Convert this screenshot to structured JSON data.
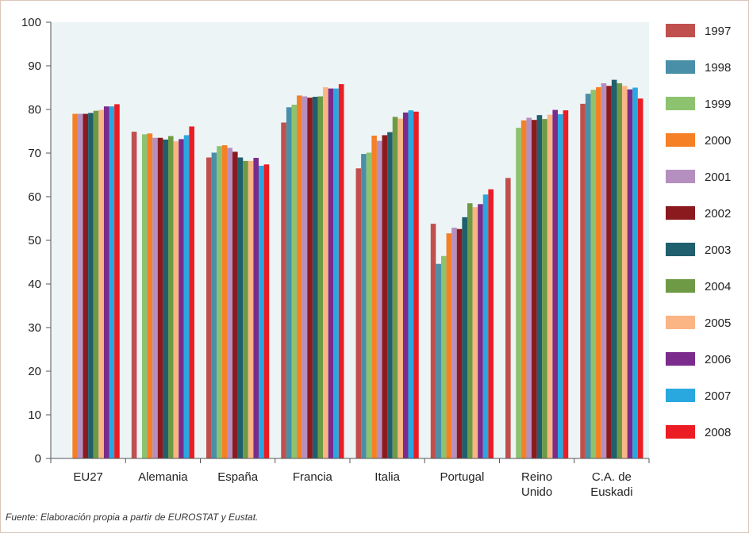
{
  "chart_data": {
    "type": "bar",
    "categories": [
      [
        "EU27"
      ],
      [
        "Alemania"
      ],
      [
        "España"
      ],
      [
        "Francia"
      ],
      [
        "Italia"
      ],
      [
        "Portugal"
      ],
      [
        "Reino",
        "Unido"
      ],
      [
        "C.A. de",
        "Euskadi"
      ]
    ],
    "ylim": [
      0,
      100
    ],
    "yticks": [
      "0",
      "10",
      "20",
      "30",
      "40",
      "50",
      "60",
      "70",
      "80",
      "90",
      "100"
    ],
    "grid": false,
    "legend_position": "right",
    "plot_background": "#edf4f6",
    "series": [
      {
        "name": "1997",
        "color": "#c0504d",
        "values": [
          null,
          74.9,
          69.0,
          77.0,
          66.5,
          53.8,
          64.3,
          81.3
        ]
      },
      {
        "name": "1998",
        "color": "#4a8fa8",
        "values": [
          null,
          null,
          70.1,
          80.5,
          69.8,
          44.6,
          null,
          83.6
        ]
      },
      {
        "name": "1999",
        "color": "#8dc26f",
        "values": [
          null,
          74.3,
          71.6,
          81.1,
          70.1,
          46.4,
          75.8,
          84.5
        ]
      },
      {
        "name": "2000",
        "color": "#f58025",
        "values": [
          79.0,
          74.5,
          71.8,
          83.2,
          74.0,
          51.6,
          77.5,
          85.1
        ]
      },
      {
        "name": "2001",
        "color": "#b58fc0",
        "values": [
          79.0,
          73.5,
          71.2,
          83.0,
          72.8,
          52.9,
          78.1,
          86.0
        ]
      },
      {
        "name": "2002",
        "color": "#8b1a1e",
        "values": [
          79.0,
          73.5,
          70.3,
          82.7,
          74.1,
          52.6,
          77.6,
          85.4
        ]
      },
      {
        "name": "2003",
        "color": "#1f5f6e",
        "values": [
          79.2,
          73.1,
          69.0,
          82.9,
          74.8,
          55.3,
          78.7,
          86.8
        ]
      },
      {
        "name": "2004",
        "color": "#6e9a45",
        "values": [
          79.7,
          73.9,
          68.2,
          83.0,
          78.3,
          58.5,
          77.8,
          86.0
        ]
      },
      {
        "name": "2005",
        "color": "#fbb584",
        "values": [
          79.9,
          72.7,
          68.2,
          85.1,
          77.9,
          57.6,
          78.8,
          85.4
        ]
      },
      {
        "name": "2006",
        "color": "#7a2b8c",
        "values": [
          80.7,
          73.2,
          68.9,
          84.8,
          79.3,
          58.3,
          79.9,
          84.6
        ]
      },
      {
        "name": "2007",
        "color": "#29a8e0",
        "values": [
          80.7,
          74.1,
          67.1,
          84.8,
          79.8,
          60.5,
          78.9,
          85.0
        ]
      },
      {
        "name": "2008",
        "color": "#ec1c24",
        "values": [
          81.2,
          76.1,
          67.4,
          85.8,
          79.5,
          61.7,
          79.8,
          82.5
        ]
      }
    ]
  },
  "source": "Fuente: Elaboración propia a partir de EUROSTAT y Eustat."
}
